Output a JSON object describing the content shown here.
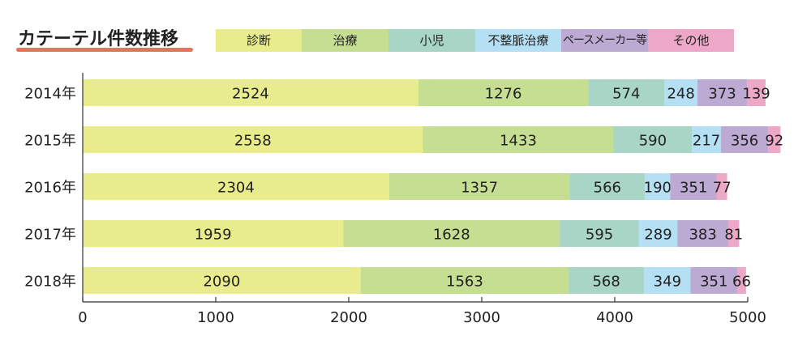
{
  "chart_data": {
    "type": "bar",
    "orientation": "horizontal",
    "stacked": true,
    "title": "カテーテル件数推移",
    "categories": [
      "2014年",
      "2015年",
      "2016年",
      "2017年",
      "2018年"
    ],
    "series": [
      {
        "name": "診断",
        "color": "#e9ec8c",
        "values": [
          2524,
          2558,
          2304,
          1959,
          2090
        ]
      },
      {
        "name": "治療",
        "color": "#c6de92",
        "values": [
          1276,
          1433,
          1357,
          1628,
          1563
        ]
      },
      {
        "name": "小児",
        "color": "#a8d5c6",
        "values": [
          574,
          590,
          566,
          595,
          568
        ]
      },
      {
        "name": "不整脈治療",
        "color": "#b5dff3",
        "values": [
          248,
          217,
          190,
          289,
          349
        ]
      },
      {
        "name": "ペースメーカー等",
        "color": "#bcaad3",
        "values": [
          373,
          356,
          351,
          383,
          351
        ]
      },
      {
        "name": "その他",
        "color": "#eda8c8",
        "values": [
          139,
          92,
          77,
          81,
          66
        ]
      }
    ],
    "xlim": [
      0,
      5000
    ],
    "xticks": [
      0,
      1000,
      2000,
      3000,
      4000,
      5000
    ],
    "grid": false,
    "legend_position": "top"
  }
}
